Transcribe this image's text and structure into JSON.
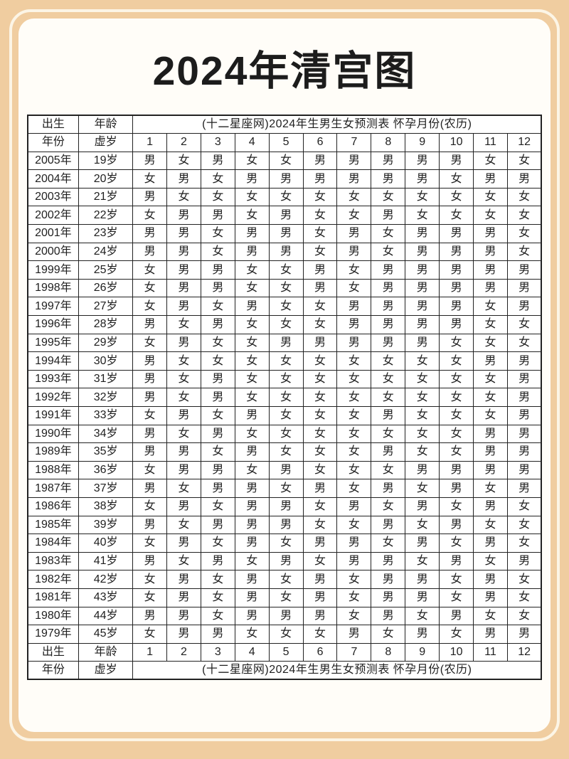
{
  "page": {
    "title": "2024年清宫图"
  },
  "colors": {
    "frame_bg": "#f0cda0",
    "frame_line": "#fcf5e6",
    "panel_bg": "#fffdf8",
    "male_cell_bg": "#cdd7ec",
    "female_cell_bg": "#f8dfc4",
    "grid": "#222222",
    "text": "#1f1f1f"
  },
  "table": {
    "banner": "(十二星座网)2024年生男生女预测表 怀孕月份(农历)",
    "labels": {
      "birth": "出生",
      "age": "年龄",
      "year": "年份",
      "nominal_age": "虚岁"
    },
    "legend": {
      "male_char": "男",
      "female_char": "女"
    },
    "months": [
      "1",
      "2",
      "3",
      "4",
      "5",
      "6",
      "7",
      "8",
      "9",
      "10",
      "11",
      "12"
    ],
    "rows": [
      {
        "year": "2005年",
        "age": "19岁",
        "values": [
          "男",
          "女",
          "男",
          "女",
          "女",
          "男",
          "男",
          "男",
          "男",
          "男",
          "女",
          "女"
        ]
      },
      {
        "year": "2004年",
        "age": "20岁",
        "values": [
          "女",
          "男",
          "女",
          "男",
          "男",
          "男",
          "男",
          "男",
          "男",
          "女",
          "男",
          "男"
        ]
      },
      {
        "year": "2003年",
        "age": "21岁",
        "values": [
          "男",
          "女",
          "女",
          "女",
          "女",
          "女",
          "女",
          "女",
          "女",
          "女",
          "女",
          "女"
        ]
      },
      {
        "year": "2002年",
        "age": "22岁",
        "values": [
          "女",
          "男",
          "男",
          "女",
          "男",
          "女",
          "女",
          "男",
          "女",
          "女",
          "女",
          "女"
        ]
      },
      {
        "year": "2001年",
        "age": "23岁",
        "values": [
          "男",
          "男",
          "女",
          "男",
          "男",
          "女",
          "男",
          "女",
          "男",
          "男",
          "男",
          "女"
        ]
      },
      {
        "year": "2000年",
        "age": "24岁",
        "values": [
          "男",
          "男",
          "女",
          "男",
          "男",
          "女",
          "男",
          "女",
          "男",
          "男",
          "男",
          "女"
        ]
      },
      {
        "year": "1999年",
        "age": "25岁",
        "values": [
          "女",
          "男",
          "男",
          "女",
          "女",
          "男",
          "女",
          "男",
          "男",
          "男",
          "男",
          "男"
        ]
      },
      {
        "year": "1998年",
        "age": "26岁",
        "values": [
          "女",
          "男",
          "男",
          "女",
          "女",
          "男",
          "女",
          "男",
          "男",
          "男",
          "男",
          "男"
        ]
      },
      {
        "year": "1997年",
        "age": "27岁",
        "values": [
          "女",
          "男",
          "女",
          "男",
          "女",
          "女",
          "男",
          "男",
          "男",
          "男",
          "女",
          "男"
        ]
      },
      {
        "year": "1996年",
        "age": "28岁",
        "values": [
          "男",
          "女",
          "男",
          "女",
          "女",
          "女",
          "男",
          "男",
          "男",
          "男",
          "女",
          "女"
        ]
      },
      {
        "year": "1995年",
        "age": "29岁",
        "values": [
          "女",
          "男",
          "女",
          "女",
          "男",
          "男",
          "男",
          "男",
          "男",
          "女",
          "女",
          "女"
        ]
      },
      {
        "year": "1994年",
        "age": "30岁",
        "values": [
          "男",
          "女",
          "女",
          "女",
          "女",
          "女",
          "女",
          "女",
          "女",
          "女",
          "男",
          "男"
        ]
      },
      {
        "year": "1993年",
        "age": "31岁",
        "values": [
          "男",
          "女",
          "男",
          "女",
          "女",
          "女",
          "女",
          "女",
          "女",
          "女",
          "女",
          "男"
        ]
      },
      {
        "year": "1992年",
        "age": "32岁",
        "values": [
          "男",
          "女",
          "男",
          "女",
          "女",
          "女",
          "女",
          "女",
          "女",
          "女",
          "女",
          "男"
        ]
      },
      {
        "year": "1991年",
        "age": "33岁",
        "values": [
          "女",
          "男",
          "女",
          "男",
          "女",
          "女",
          "女",
          "男",
          "女",
          "女",
          "女",
          "男"
        ]
      },
      {
        "year": "1990年",
        "age": "34岁",
        "values": [
          "男",
          "女",
          "男",
          "女",
          "女",
          "女",
          "女",
          "女",
          "女",
          "女",
          "男",
          "男"
        ]
      },
      {
        "year": "1989年",
        "age": "35岁",
        "values": [
          "男",
          "男",
          "女",
          "男",
          "女",
          "女",
          "女",
          "男",
          "女",
          "女",
          "男",
          "男"
        ]
      },
      {
        "year": "1988年",
        "age": "36岁",
        "values": [
          "女",
          "男",
          "男",
          "女",
          "男",
          "女",
          "女",
          "女",
          "男",
          "男",
          "男",
          "男"
        ]
      },
      {
        "year": "1987年",
        "age": "37岁",
        "values": [
          "男",
          "女",
          "男",
          "男",
          "女",
          "男",
          "女",
          "男",
          "女",
          "男",
          "女",
          "男"
        ]
      },
      {
        "year": "1986年",
        "age": "38岁",
        "values": [
          "女",
          "男",
          "女",
          "男",
          "男",
          "女",
          "男",
          "女",
          "男",
          "女",
          "男",
          "女"
        ]
      },
      {
        "year": "1985年",
        "age": "39岁",
        "values": [
          "男",
          "女",
          "男",
          "男",
          "男",
          "女",
          "女",
          "男",
          "女",
          "男",
          "女",
          "女"
        ]
      },
      {
        "year": "1984年",
        "age": "40岁",
        "values": [
          "女",
          "男",
          "女",
          "男",
          "女",
          "男",
          "男",
          "女",
          "男",
          "女",
          "男",
          "女"
        ]
      },
      {
        "year": "1983年",
        "age": "41岁",
        "values": [
          "男",
          "女",
          "男",
          "女",
          "男",
          "女",
          "男",
          "男",
          "女",
          "男",
          "女",
          "男"
        ]
      },
      {
        "year": "1982年",
        "age": "42岁",
        "values": [
          "女",
          "男",
          "女",
          "男",
          "女",
          "男",
          "女",
          "男",
          "男",
          "女",
          "男",
          "女"
        ]
      },
      {
        "year": "1981年",
        "age": "43岁",
        "values": [
          "女",
          "男",
          "女",
          "男",
          "女",
          "男",
          "女",
          "男",
          "男",
          "女",
          "男",
          "女"
        ]
      },
      {
        "year": "1980年",
        "age": "44岁",
        "values": [
          "男",
          "男",
          "女",
          "男",
          "男",
          "男",
          "女",
          "男",
          "女",
          "男",
          "女",
          "女"
        ]
      },
      {
        "year": "1979年",
        "age": "45岁",
        "values": [
          "女",
          "男",
          "男",
          "女",
          "女",
          "女",
          "男",
          "女",
          "男",
          "女",
          "男",
          "男"
        ]
      }
    ]
  }
}
